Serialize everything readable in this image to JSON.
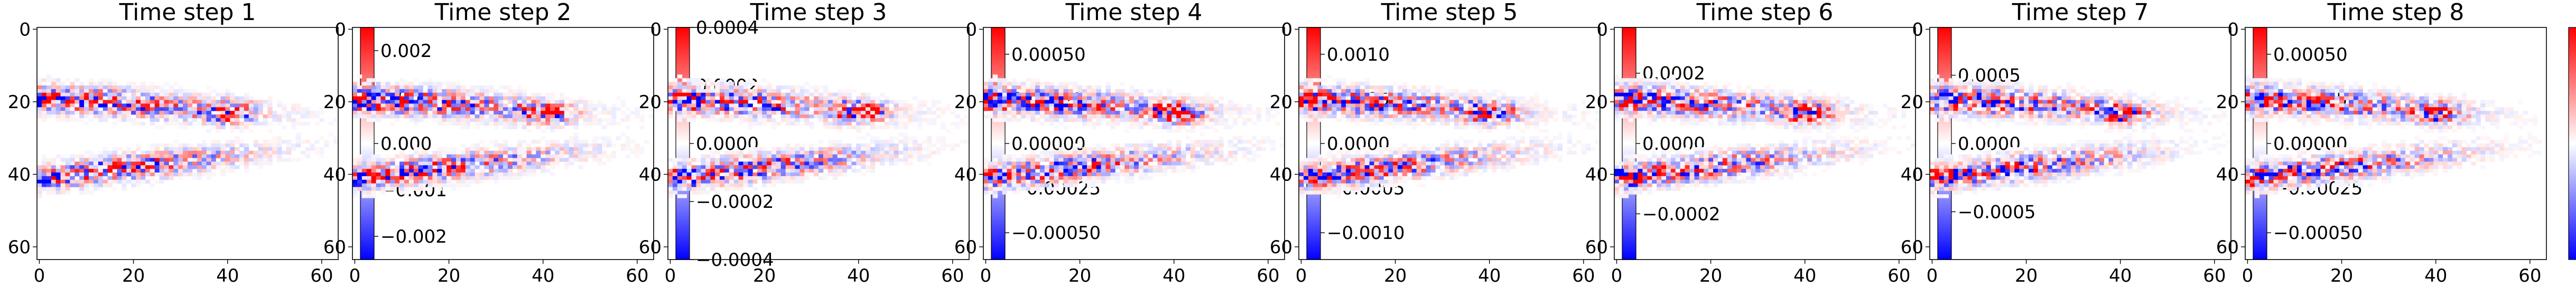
{
  "colors": {
    "negative": "#0000ff",
    "neutral": "#ffffff",
    "positive": "#ff0000",
    "axes": "#000000"
  },
  "colormap": "bwr",
  "chart_data": [
    {
      "type": "heatmap",
      "title": "Time step 1",
      "grid_size": [
        64,
        64
      ],
      "xticks": [
        "0",
        "20",
        "40",
        "60"
      ],
      "yticks": [
        "0",
        "20",
        "40",
        "60"
      ],
      "x_tick_values": [
        0,
        20,
        40,
        60
      ],
      "y_tick_values": [
        0,
        20,
        40,
        60
      ],
      "colorbar": {
        "range": [
          -0.0025,
          0.0025
        ],
        "ticks": [
          0.002,
          0.001,
          0.0,
          -0.001,
          -0.002
        ],
        "tick_labels": [
          "0.002",
          "0.001",
          "0.000",
          "−0.001",
          "−0.002"
        ]
      },
      "seed": 11
    },
    {
      "type": "heatmap",
      "title": "Time step 2",
      "grid_size": [
        64,
        64
      ],
      "xticks": [
        "0",
        "20",
        "40",
        "60"
      ],
      "yticks": [
        "0",
        "20",
        "40",
        "60"
      ],
      "x_tick_values": [
        0,
        20,
        40,
        60
      ],
      "y_tick_values": [
        0,
        20,
        40,
        60
      ],
      "colorbar": {
        "range": [
          -0.0004,
          0.0004
        ],
        "ticks": [
          0.0004,
          0.0002,
          0.0,
          -0.0002,
          -0.0004
        ],
        "tick_labels": [
          "0.0004",
          "0.0002",
          "0.0000",
          "−0.0002",
          "−0.0004"
        ]
      },
      "seed": 23
    },
    {
      "type": "heatmap",
      "title": "Time step 3",
      "grid_size": [
        64,
        64
      ],
      "xticks": [
        "0",
        "20",
        "40",
        "60"
      ],
      "yticks": [
        "0",
        "20",
        "40",
        "60"
      ],
      "x_tick_values": [
        0,
        20,
        40,
        60
      ],
      "y_tick_values": [
        0,
        20,
        40,
        60
      ],
      "colorbar": {
        "range": [
          -0.00065,
          0.00065
        ],
        "ticks": [
          0.0005,
          0.00025,
          0.0,
          -0.00025,
          -0.0005
        ],
        "tick_labels": [
          "0.00050",
          "0.00025",
          "0.00000",
          "−0.00025",
          "−0.00050"
        ]
      },
      "seed": 37
    },
    {
      "type": "heatmap",
      "title": "Time step 4",
      "grid_size": [
        64,
        64
      ],
      "xticks": [
        "0",
        "20",
        "40",
        "60"
      ],
      "yticks": [
        "0",
        "20",
        "40",
        "60"
      ],
      "x_tick_values": [
        0,
        20,
        40,
        60
      ],
      "y_tick_values": [
        0,
        20,
        40,
        60
      ],
      "colorbar": {
        "range": [
          -0.0013,
          0.0013
        ],
        "ticks": [
          0.001,
          0.0005,
          0.0,
          -0.0005,
          -0.001
        ],
        "tick_labels": [
          "0.0010",
          "0.0005",
          "0.0000",
          "−0.0005",
          "−0.0010"
        ]
      },
      "seed": 41
    },
    {
      "type": "heatmap",
      "title": "Time step 5",
      "grid_size": [
        64,
        64
      ],
      "xticks": [
        "0",
        "20",
        "40",
        "60"
      ],
      "yticks": [
        "0",
        "20",
        "40",
        "60"
      ],
      "x_tick_values": [
        0,
        20,
        40,
        60
      ],
      "y_tick_values": [
        0,
        20,
        40,
        60
      ],
      "colorbar": {
        "range": [
          -0.00033,
          0.00033
        ],
        "ticks": [
          0.0002,
          0.0,
          -0.0002
        ],
        "tick_labels": [
          "0.0002",
          "0.0000",
          "−0.0002"
        ]
      },
      "seed": 53
    },
    {
      "type": "heatmap",
      "title": "Time step 6",
      "grid_size": [
        64,
        64
      ],
      "xticks": [
        "0",
        "20",
        "40",
        "60"
      ],
      "yticks": [
        "0",
        "20",
        "40",
        "60"
      ],
      "x_tick_values": [
        0,
        20,
        40,
        60
      ],
      "y_tick_values": [
        0,
        20,
        40,
        60
      ],
      "colorbar": {
        "range": [
          -0.00085,
          0.00085
        ],
        "ticks": [
          0.0005,
          0.0,
          -0.0005
        ],
        "tick_labels": [
          "0.0005",
          "0.0000",
          "−0.0005"
        ]
      },
      "seed": 67
    },
    {
      "type": "heatmap",
      "title": "Time step 7",
      "grid_size": [
        64,
        64
      ],
      "xticks": [
        "0",
        "20",
        "40",
        "60"
      ],
      "yticks": [
        "0",
        "20",
        "40",
        "60"
      ],
      "x_tick_values": [
        0,
        20,
        40,
        60
      ],
      "y_tick_values": [
        0,
        20,
        40,
        60
      ],
      "colorbar": {
        "range": [
          -0.00065,
          0.00065
        ],
        "ticks": [
          0.0005,
          0.00025,
          0.0,
          -0.00025,
          -0.0005
        ],
        "tick_labels": [
          "0.00050",
          "0.00025",
          "0.00000",
          "−0.00025",
          "−0.00050"
        ]
      },
      "seed": 79
    },
    {
      "type": "heatmap",
      "title": "Time step 8",
      "grid_size": [
        64,
        64
      ],
      "xticks": [
        "0",
        "20",
        "40",
        "60"
      ],
      "yticks": [
        "0",
        "20",
        "40",
        "60"
      ],
      "x_tick_values": [
        0,
        20,
        40,
        60
      ],
      "y_tick_values": [
        0,
        20,
        40,
        60
      ],
      "colorbar": {
        "range": [
          -0.0016,
          0.0016
        ],
        "ticks": [
          0.001,
          0.0,
          -0.001
        ],
        "tick_labels": [
          "0.001",
          "0.000",
          "−0.001"
        ]
      },
      "seed": 97
    }
  ]
}
